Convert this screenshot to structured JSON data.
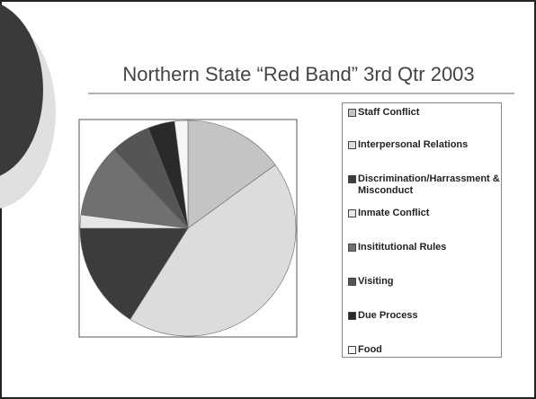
{
  "chart_data": {
    "type": "pie",
    "title": "Northern State “Red Band” 3rd Qtr 2003",
    "categories": [
      "Staff Conflict",
      "Interpersonal Relations",
      "Discrimination/Harrassment & Misconduct",
      "Inmate Conflict",
      "Insititutional Rules",
      "Visiting",
      "Due Process",
      "Food"
    ],
    "values": [
      15,
      44,
      16,
      2,
      11,
      6,
      4,
      2
    ],
    "colors": [
      "#c4c4c4",
      "#dcdcdc",
      "#3c3c3c",
      "#e6e6e6",
      "#707070",
      "#555555",
      "#2a2a2a",
      "#f6f6f6"
    ]
  }
}
